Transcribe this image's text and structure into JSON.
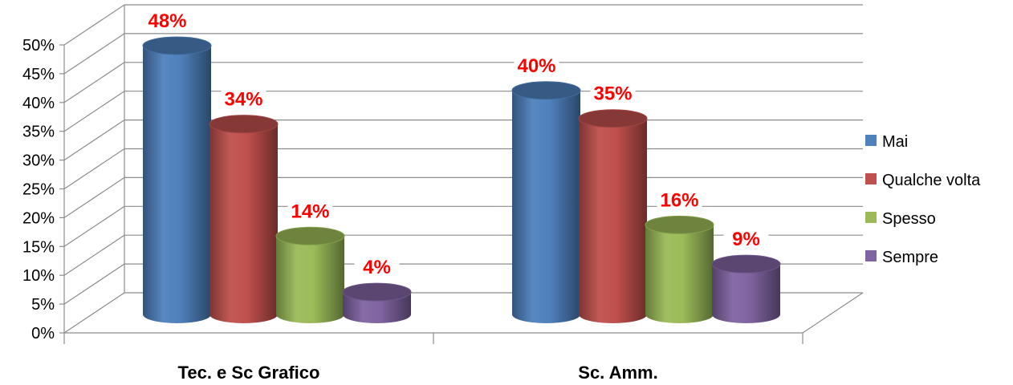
{
  "chart_data": {
    "type": "bar",
    "categories": [
      "Tec.  e Sc Grafico",
      "Sc. Amm."
    ],
    "series": [
      {
        "name": "Mai",
        "values": [
          48,
          40
        ],
        "labels": [
          "48%",
          "40%"
        ]
      },
      {
        "name": "Qualche volta",
        "values": [
          34,
          35
        ],
        "labels": [
          "34%",
          "35%"
        ]
      },
      {
        "name": "Spesso",
        "values": [
          14,
          16
        ],
        "labels": [
          "14%",
          "16%"
        ]
      },
      {
        "name": "Sempre",
        "values": [
          4,
          9
        ],
        "labels": [
          "4%",
          "9%"
        ]
      }
    ],
    "ylim": [
      0,
      50
    ],
    "y_ticks": [
      "0%",
      "5%",
      "10%",
      "15%",
      "20%",
      "25%",
      "30%",
      "35%",
      "40%",
      "45%",
      "50%"
    ],
    "grid": true,
    "legend_position": "right",
    "colors": {
      "Mai": "#4f81bd",
      "Qualche volta": "#c0504d",
      "Spesso": "#9bbb59",
      "Sempre": "#8064a2",
      "data_labels": "#ff0000"
    }
  }
}
